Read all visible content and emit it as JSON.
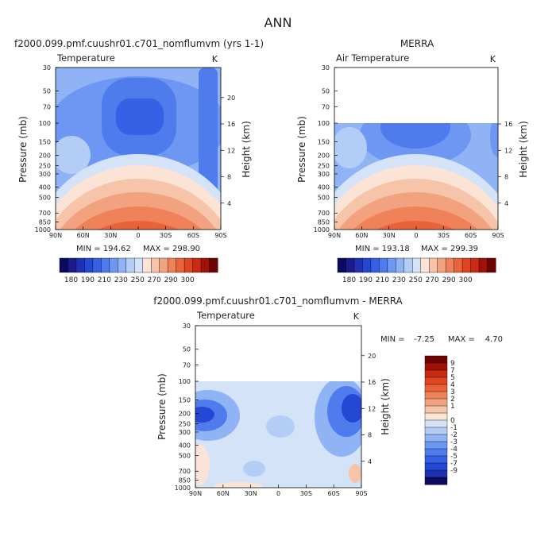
{
  "page_title": "ANN",
  "colors": {
    "pos": [
      "#fbe3d6",
      "#f6c4a8",
      "#f3a27f",
      "#f08259",
      "#ea623a",
      "#df4520",
      "#c92a12",
      "#a01208",
      "#6f0303"
    ],
    "neg": [
      "#d4e3f8",
      "#b3cdf6",
      "#8fb3f5",
      "#6d97f3",
      "#4f7ced",
      "#3660e6",
      "#2447d4",
      "#1f30b3",
      "#1c1b8a",
      "#0b0a60"
    ]
  },
  "chart_data": [
    {
      "type": "heatmap",
      "title": "f2000.099.pmf.cuushr01.c701_nomflumvm (yrs 1-1)",
      "variable": "Temperature",
      "units": "K",
      "ylabel": "Pressure (mb)",
      "ylabel_right": "Height (km)",
      "x_ticks": [
        "90N",
        "60N",
        "30N",
        "0",
        "30S",
        "60S",
        "90S"
      ],
      "y_ticks": [
        "30",
        "50",
        "70",
        "100",
        "150",
        "200",
        "250",
        "300",
        "400",
        "500",
        "700",
        "850",
        "1000"
      ],
      "height_ticks": [
        "20",
        "16",
        "12",
        "8",
        "4"
      ],
      "min_label": "MIN = 194.62",
      "max_label": "MAX = 298.90",
      "colorbar_labels": [
        "180",
        "190",
        "210",
        "230",
        "250",
        "270",
        "290",
        "300"
      ],
      "data_ylim": [
        "30",
        "1000"
      ]
    },
    {
      "type": "heatmap",
      "title": "MERRA",
      "variable": "Air Temperature",
      "units": "K",
      "ylabel": "Pressure (mb)",
      "ylabel_right": "Height (km)",
      "x_ticks": [
        "90N",
        "60N",
        "30N",
        "0",
        "30S",
        "60S",
        "90S"
      ],
      "y_ticks": [
        "30",
        "50",
        "70",
        "100",
        "150",
        "200",
        "250",
        "300",
        "400",
        "500",
        "700",
        "850",
        "1000"
      ],
      "height_ticks": [
        "16",
        "12",
        "8",
        "4"
      ],
      "min_label": "MIN = 193.18",
      "max_label": "MAX = 299.39",
      "colorbar_labels": [
        "180",
        "190",
        "210",
        "230",
        "250",
        "270",
        "290",
        "300"
      ],
      "data_ylim": [
        "100",
        "1000"
      ]
    },
    {
      "type": "heatmap",
      "title": "f2000.099.pmf.cuushr01.c701_nomflumvm - MERRA",
      "variable": "Temperature",
      "units": "K",
      "ylabel": "Pressure (mb)",
      "ylabel_right": "Height (km)",
      "x_ticks": [
        "90N",
        "60N",
        "30N",
        "0",
        "30S",
        "60S",
        "90S"
      ],
      "y_ticks": [
        "30",
        "50",
        "70",
        "100",
        "150",
        "200",
        "250",
        "300",
        "400",
        "500",
        "700",
        "850",
        "1000"
      ],
      "height_ticks": [
        "20",
        "16",
        "12",
        "8",
        "4"
      ],
      "min_label": "MIN =",
      "min_value": "-7.25",
      "max_label": "MAX =",
      "max_value": "4.70",
      "colorbar_labels": [
        "9",
        "7",
        "5",
        "4",
        "3",
        "2",
        "1",
        "0",
        "-1",
        "-2",
        "-3",
        "-4",
        "-5",
        "-7",
        "-9"
      ],
      "data_ylim": [
        "100",
        "1000"
      ]
    }
  ]
}
